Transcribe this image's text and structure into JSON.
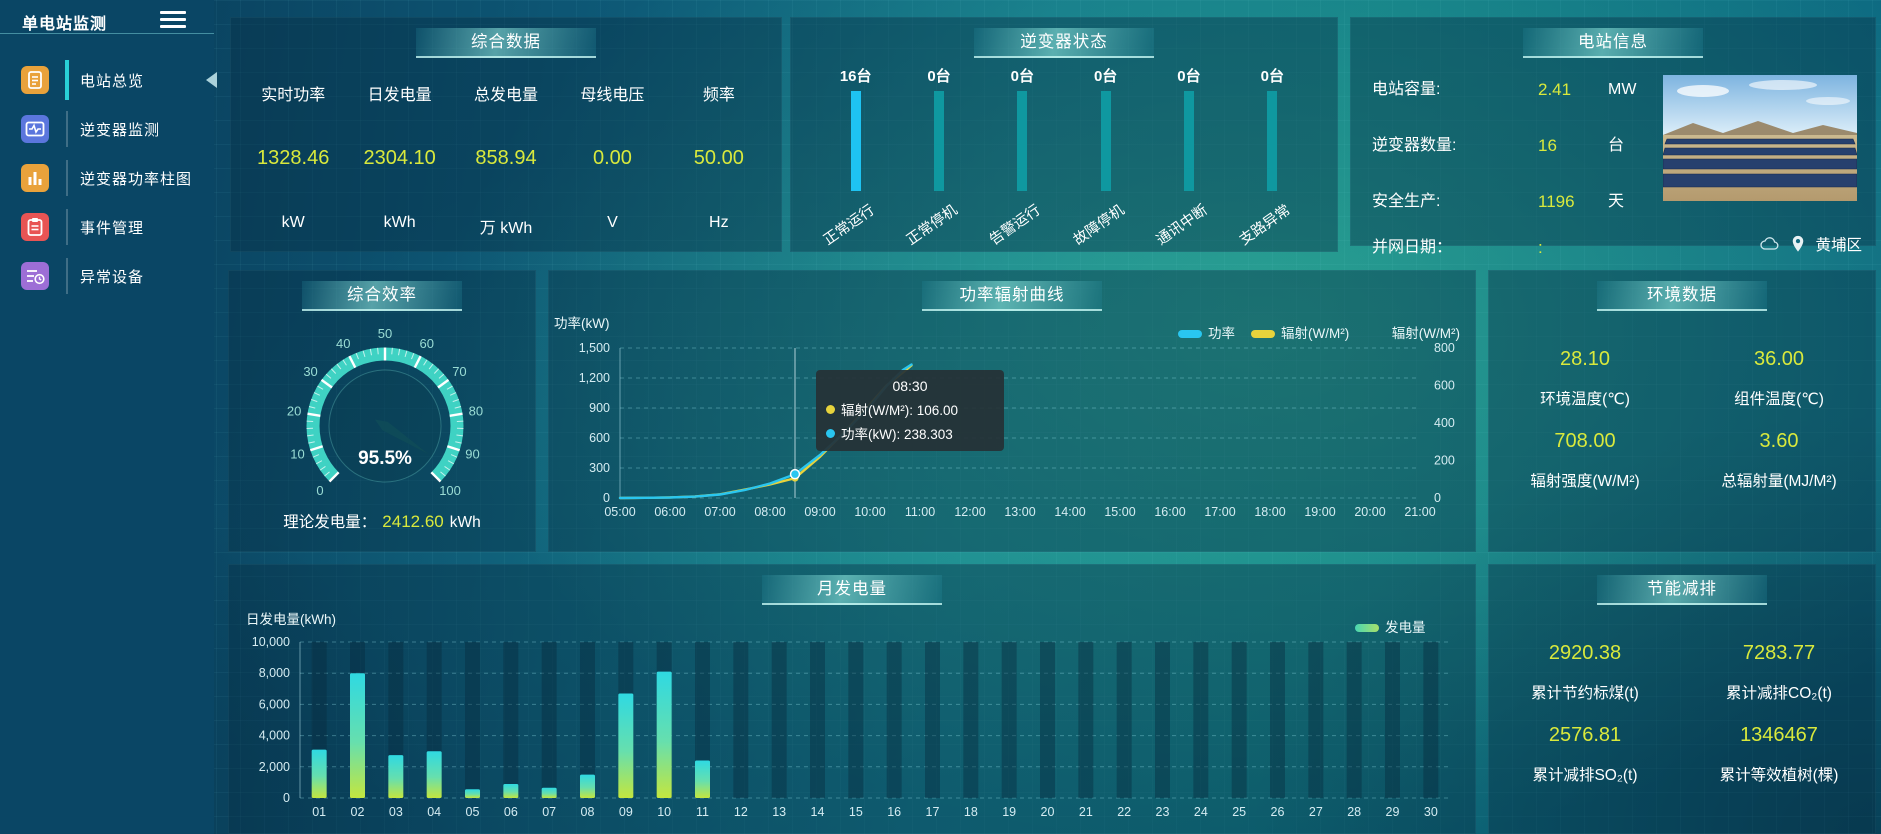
{
  "colors": {
    "accent_yellow": "#d9e93c",
    "power_cyan": "#29c6f0",
    "radiation_yellow": "#e7d33c",
    "status_blue": "#1ec3f2",
    "status_teal": "#0f98a0",
    "gauge_teal": "#3fd2c3",
    "energy_green": "#7fe09a"
  },
  "sidebar": {
    "title": "单电站监测",
    "items": [
      {
        "label": "电站总览",
        "icon": "document-icon",
        "color": "#e9a23b",
        "active": true
      },
      {
        "label": "逆变器监测",
        "icon": "monitor-icon",
        "color": "#5b76dd",
        "active": false
      },
      {
        "label": "逆变器功率柱图",
        "icon": "bar-chart-icon",
        "color": "#e9a23b",
        "active": false
      },
      {
        "label": "事件管理",
        "icon": "clipboard-icon",
        "color": "#e85454",
        "active": false
      },
      {
        "label": "异常设备",
        "icon": "device-list-icon",
        "color": "#9d6ed6",
        "active": false
      }
    ]
  },
  "overview": {
    "title": "综合数据",
    "metrics": [
      {
        "label": "实时功率",
        "value": "1328.46",
        "unit": "kW"
      },
      {
        "label": "日发电量",
        "value": "2304.10",
        "unit": "kWh"
      },
      {
        "label": "总发电量",
        "value": "858.94",
        "unit": "万 kWh"
      },
      {
        "label": "母线电压",
        "value": "0.00",
        "unit": "V"
      },
      {
        "label": "频率",
        "value": "50.00",
        "unit": "Hz"
      }
    ]
  },
  "inverter_status": {
    "title": "逆变器状态",
    "bars": [
      {
        "count": "16台",
        "label": "正常运行",
        "highlight": true
      },
      {
        "count": "0台",
        "label": "正常停机",
        "highlight": false
      },
      {
        "count": "0台",
        "label": "告警运行",
        "highlight": false
      },
      {
        "count": "0台",
        "label": "故障停机",
        "highlight": false
      },
      {
        "count": "0台",
        "label": "通讯中断",
        "highlight": false
      },
      {
        "count": "0台",
        "label": "支路异常",
        "highlight": false
      }
    ]
  },
  "station_info": {
    "title": "电站信息",
    "rows": [
      {
        "label": "电站容量:",
        "value": "2.41",
        "unit": "MW"
      },
      {
        "label": "逆变器数量:",
        "value": "16",
        "unit": "台"
      },
      {
        "label": "安全生产:",
        "value": "1196",
        "unit": "天"
      },
      {
        "label": "并网日期：",
        "value": ":",
        "unit": ""
      }
    ],
    "location": "黄埔区"
  },
  "efficiency": {
    "title": "综合效率",
    "value_text": "95.5%",
    "footer_label": "理论发电量：",
    "footer_value": "2412.60",
    "footer_unit": "kWh"
  },
  "env": {
    "title": "环境数据",
    "cells": [
      {
        "value": "28.10",
        "label": "环境温度(℃)"
      },
      {
        "value": "36.00",
        "label": "组件温度(℃)"
      },
      {
        "value": "708.00",
        "label": "辐射强度(W/M²)"
      },
      {
        "value": "3.60",
        "label": "总辐射量(MJ/M²)"
      }
    ]
  },
  "saving": {
    "title": "节能减排",
    "cells": [
      {
        "value": "2920.38",
        "label": "累计节约标煤(t)"
      },
      {
        "value": "7283.77",
        "label": "累计减排CO₂(t)"
      },
      {
        "value": "2576.81",
        "label": "累计减排SO₂(t)"
      },
      {
        "value": "1346467",
        "label": "累计等效植树(棵)"
      }
    ]
  },
  "chart_data": [
    {
      "id": "power_radiation",
      "type": "line",
      "title": "功率辐射曲线",
      "ylabel_left": "功率(kW)",
      "ylabel_right": "辐射(W/M²)",
      "ylim_left": [
        0,
        1500
      ],
      "ylim_right": [
        0,
        800
      ],
      "yticks_left": [
        "1,500",
        "1,200",
        "900",
        "600",
        "300",
        "0"
      ],
      "yticks_right": [
        "800",
        "600",
        "400",
        "200",
        "0"
      ],
      "xticks": [
        "05:00",
        "06:00",
        "07:00",
        "08:00",
        "09:00",
        "10:00",
        "11:00",
        "12:00",
        "13:00",
        "14:00",
        "15:00",
        "16:00",
        "17:00",
        "18:00",
        "19:00",
        "20:00",
        "21:00"
      ],
      "legend": [
        {
          "name": "功率",
          "color": "#29c6f0"
        },
        {
          "name": "辐射(W/M²)",
          "color": "#e7d33c"
        }
      ],
      "series": [
        {
          "name": "功率",
          "color": "#29c6f0",
          "axis": "left",
          "points": [
            [
              5,
              0
            ],
            [
              5.5,
              2
            ],
            [
              6,
              5
            ],
            [
              6.5,
              14
            ],
            [
              7,
              35
            ],
            [
              7.5,
              80
            ],
            [
              8,
              145
            ],
            [
              8.5,
              238.3
            ],
            [
              9,
              430
            ],
            [
              9.5,
              660
            ],
            [
              10,
              920
            ],
            [
              10.33,
              1120
            ],
            [
              10.66,
              1280
            ],
            [
              10.83,
              1335
            ]
          ]
        },
        {
          "name": "辐射(W/M²)",
          "color": "#e7d33c",
          "axis": "right",
          "points": [
            [
              5,
              0
            ],
            [
              5.5,
              1
            ],
            [
              6,
              3
            ],
            [
              6.5,
              8
            ],
            [
              7,
              20
            ],
            [
              7.5,
              45
            ],
            [
              8,
              72
            ],
            [
              8.5,
              106
            ],
            [
              9,
              220
            ],
            [
              9.5,
              355
            ],
            [
              10,
              500
            ],
            [
              10.33,
              600
            ],
            [
              10.66,
              670
            ],
            [
              10.83,
              708
            ]
          ]
        }
      ],
      "tooltip": {
        "time": "08:30",
        "x": 8.5,
        "lines": [
          {
            "color": "#e7d33c",
            "text": "辐射(W/M²): 106.00"
          },
          {
            "color": "#29c6f0",
            "text": "功率(kW): 238.303"
          }
        ]
      }
    },
    {
      "id": "daily_energy",
      "type": "bar",
      "title": "月发电量",
      "ylabel": "日发电量(kWh)",
      "ylim": [
        0,
        10000
      ],
      "yticks": [
        "10,000",
        "8,000",
        "6,000",
        "4,000",
        "2,000",
        "0"
      ],
      "legend": [
        {
          "name": "发电量",
          "color": "#7fe09a"
        }
      ],
      "categories": [
        "01",
        "02",
        "03",
        "04",
        "05",
        "06",
        "07",
        "08",
        "09",
        "10",
        "11",
        "12",
        "13",
        "14",
        "15",
        "16",
        "17",
        "18",
        "19",
        "20",
        "21",
        "22",
        "23",
        "24",
        "25",
        "26",
        "27",
        "28",
        "29",
        "30"
      ],
      "values": [
        3100,
        8000,
        2750,
        3000,
        560,
        900,
        660,
        1500,
        6700,
        8100,
        2400,
        0,
        0,
        0,
        0,
        0,
        0,
        0,
        0,
        0,
        0,
        0,
        0,
        0,
        0,
        0,
        0,
        0,
        0,
        0
      ]
    },
    {
      "id": "efficiency_gauge",
      "type": "gauge",
      "min": 0,
      "max": 100,
      "value": 95.5,
      "tick_labels": [
        0,
        10,
        20,
        30,
        40,
        50,
        60,
        70,
        80,
        90,
        100
      ],
      "value_text": "95.5%"
    },
    {
      "id": "inverter_status_bars",
      "type": "bar",
      "categories": [
        "正常运行",
        "正常停机",
        "告警运行",
        "故障停机",
        "通讯中断",
        "支路异常"
      ],
      "values": [
        16,
        0,
        0,
        0,
        0,
        0
      ],
      "unit": "台"
    }
  ]
}
